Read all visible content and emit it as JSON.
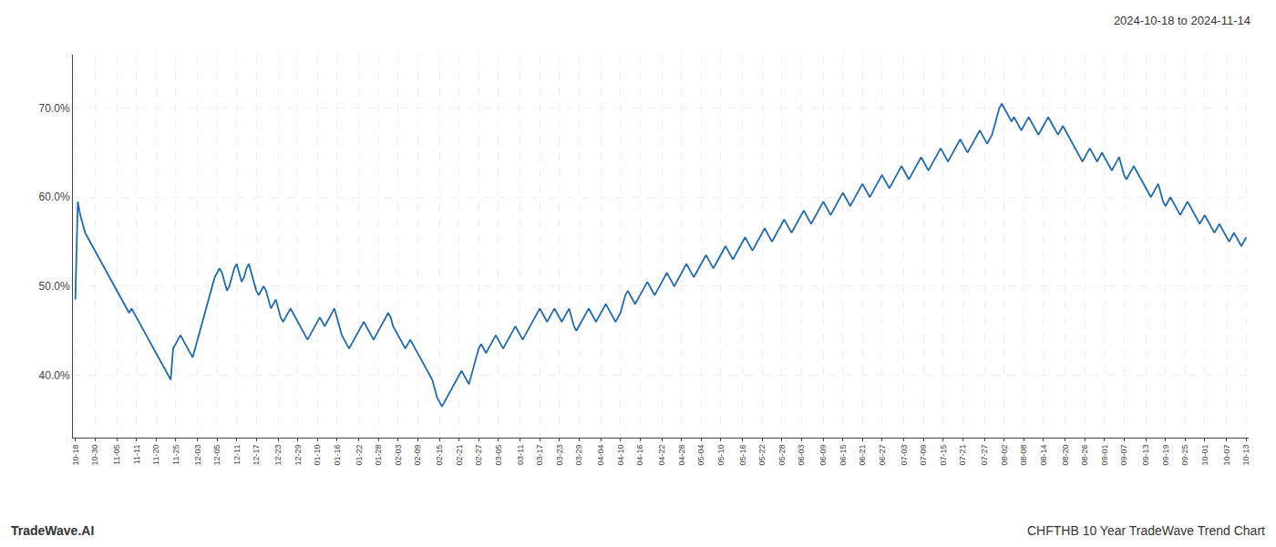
{
  "chart_data": {
    "type": "line",
    "title": "2024-10-18 to 2024-11-14",
    "annotations": [
      "TradeWave.AI",
      "CHFTHB 10 Year TradeWave Trend Chart"
    ],
    "color": "#1f6ab0",
    "grid": true,
    "ylim": [
      33,
      76
    ],
    "yticks": [
      {
        "value": 40.0,
        "label": "40.0%"
      },
      {
        "value": 50.0,
        "label": "50.0%"
      },
      {
        "value": 60.0,
        "label": "60.0%"
      },
      {
        "value": 70.0,
        "label": "70.0%"
      }
    ],
    "categories": [
      "10-18",
      null,
      null,
      null,
      null,
      null,
      null,
      null,
      "10-30",
      null,
      null,
      null,
      null,
      null,
      null,
      null,
      null,
      "11-05",
      null,
      null,
      null,
      null,
      null,
      null,
      null,
      "11-11",
      null,
      null,
      null,
      null,
      null,
      null,
      null,
      "11-20",
      null,
      null,
      null,
      null,
      null,
      null,
      null,
      "11-25",
      null,
      null,
      null,
      null,
      null,
      null,
      null,
      null,
      "12-03",
      null,
      null,
      null,
      null,
      null,
      null,
      null,
      "12-05",
      null,
      null,
      null,
      null,
      null,
      null,
      null,
      "12-11",
      null,
      null,
      null,
      null,
      null,
      null,
      null,
      "12-17",
      null,
      null,
      null,
      null,
      null,
      null,
      null,
      null,
      "12-23",
      null,
      null,
      null,
      null,
      null,
      null,
      null,
      "12-29",
      null,
      null,
      null,
      null,
      null,
      null,
      null,
      "01-10",
      null,
      null,
      null,
      null,
      null,
      null,
      null,
      "01-16",
      null,
      null,
      null,
      null,
      null,
      null,
      null,
      null,
      "01-22",
      null,
      null,
      null,
      null,
      null,
      null,
      null,
      "01-28",
      null,
      null,
      null,
      null,
      null,
      null,
      null,
      "02-03",
      null,
      null,
      null,
      null,
      null,
      null,
      null,
      "02-09",
      null,
      null,
      null,
      null,
      null,
      null,
      null,
      null,
      "02-15",
      null,
      null,
      null,
      null,
      null,
      null,
      null,
      "02-21",
      null,
      null,
      null,
      null,
      null,
      null,
      null,
      "02-27",
      null,
      null,
      null,
      null,
      null,
      null,
      null,
      "03-05",
      null,
      null,
      null,
      null,
      null,
      null,
      null,
      null,
      "03-11",
      null,
      null,
      null,
      null,
      null,
      null,
      null,
      "03-17",
      null,
      null,
      null,
      null,
      null,
      null,
      null,
      "03-23",
      null,
      null,
      null,
      null,
      null,
      null,
      null,
      "03-29",
      null,
      null,
      null,
      null,
      null,
      null,
      null,
      null,
      "04-04",
      null,
      null,
      null,
      null,
      null,
      null,
      null,
      "04-10",
      null,
      null,
      null,
      null,
      null,
      null,
      null,
      "04-16",
      null,
      null,
      null,
      null,
      null,
      null,
      null,
      null,
      "04-22",
      null,
      null,
      null,
      null,
      null,
      null,
      null,
      "04-28",
      null,
      null,
      null,
      null,
      null,
      null,
      null,
      "05-04",
      null,
      null,
      null,
      null,
      null,
      null,
      null,
      "05-10",
      null,
      null,
      null,
      null,
      null,
      null,
      null,
      null,
      "05-16",
      null,
      null,
      null,
      null,
      null,
      null,
      null,
      "05-22",
      null,
      null,
      null,
      null,
      null,
      null,
      null,
      "05-28",
      null,
      null,
      null,
      null,
      null,
      null,
      null,
      "06-03",
      null,
      null,
      null,
      null,
      null,
      null,
      null,
      null,
      "06-09",
      null,
      null,
      null,
      null,
      null,
      null,
      null,
      "06-15",
      null,
      null,
      null,
      null,
      null,
      null,
      null,
      "06-21",
      null,
      null,
      null,
      null,
      null,
      null,
      null,
      "06-27",
      null,
      null,
      null,
      null,
      null,
      null,
      null,
      null,
      "07-03",
      null,
      null,
      null,
      null,
      null,
      null,
      null,
      "07-09",
      null,
      null,
      null,
      null,
      null,
      null,
      null,
      "07-15",
      null,
      null,
      null,
      null,
      null,
      null,
      null,
      "07-21",
      null,
      null,
      null,
      null,
      null,
      null,
      null,
      null,
      "07-27",
      null,
      null,
      null,
      null,
      null,
      null,
      null,
      "08-02",
      null,
      null,
      null,
      null,
      null,
      null,
      null,
      "08-08",
      null,
      null,
      null,
      null,
      null,
      null,
      null,
      "08-14",
      null,
      null,
      null,
      null,
      null,
      null,
      null,
      null,
      "08-20",
      null,
      null,
      null,
      null,
      null,
      null,
      null,
      "08-26",
      null,
      null,
      null,
      null,
      null,
      null,
      null,
      "09-01",
      null,
      null,
      null,
      null,
      null,
      null,
      null,
      "09-07",
      null,
      null,
      null,
      null,
      null,
      null,
      null,
      null,
      "09-13",
      null,
      null,
      null,
      null,
      null,
      null,
      null,
      "09-19",
      null,
      null,
      null,
      null,
      null,
      null,
      null,
      "09-25",
      null,
      null,
      null,
      null,
      null,
      null,
      null,
      "10-01",
      null,
      null,
      null,
      null,
      null,
      null,
      null,
      null,
      "10-07",
      null,
      null,
      null,
      null,
      null,
      null,
      null,
      "10-13"
    ],
    "values": [
      48.5,
      59.5,
      58.0,
      57.0,
      56.0,
      55.5,
      55.0,
      54.5,
      54.0,
      53.5,
      53.0,
      52.5,
      52.0,
      51.5,
      51.0,
      50.5,
      50.0,
      49.5,
      49.0,
      48.5,
      48.0,
      47.5,
      47.0,
      47.5,
      47.0,
      46.5,
      46.0,
      45.5,
      45.0,
      44.5,
      44.0,
      43.5,
      43.0,
      42.5,
      42.0,
      41.5,
      41.0,
      40.5,
      40.0,
      39.5,
      43.0,
      43.5,
      44.0,
      44.5,
      44.0,
      43.5,
      43.0,
      42.5,
      42.0,
      43.0,
      44.0,
      45.0,
      46.0,
      47.0,
      48.0,
      49.0,
      50.0,
      51.0,
      51.5,
      52.0,
      51.5,
      50.5,
      49.5,
      50.0,
      51.0,
      52.0,
      52.5,
      51.5,
      50.5,
      51.0,
      52.0,
      52.5,
      51.5,
      50.5,
      49.5,
      49.0,
      49.5,
      50.0,
      49.5,
      48.5,
      47.5,
      48.0,
      48.5,
      47.5,
      46.5,
      46.0,
      46.5,
      47.0,
      47.5,
      47.0,
      46.5,
      46.0,
      45.5,
      45.0,
      44.5,
      44.0,
      44.5,
      45.0,
      45.5,
      46.0,
      46.5,
      46.0,
      45.5,
      46.0,
      46.5,
      47.0,
      47.5,
      46.5,
      45.5,
      44.5,
      44.0,
      43.5,
      43.0,
      43.5,
      44.0,
      44.5,
      45.0,
      45.5,
      46.0,
      45.5,
      45.0,
      44.5,
      44.0,
      44.5,
      45.0,
      45.5,
      46.0,
      46.5,
      47.0,
      46.5,
      45.5,
      45.0,
      44.5,
      44.0,
      43.5,
      43.0,
      43.5,
      44.0,
      43.5,
      43.0,
      42.5,
      42.0,
      41.5,
      41.0,
      40.5,
      40.0,
      39.5,
      38.5,
      37.5,
      37.0,
      36.5,
      37.0,
      37.5,
      38.0,
      38.5,
      39.0,
      39.5,
      40.0,
      40.5,
      40.0,
      39.5,
      39.0,
      40.0,
      41.0,
      42.0,
      43.0,
      43.5,
      43.0,
      42.5,
      43.0,
      43.5,
      44.0,
      44.5,
      44.0,
      43.5,
      43.0,
      43.5,
      44.0,
      44.5,
      45.0,
      45.5,
      45.0,
      44.5,
      44.0,
      44.5,
      45.0,
      45.5,
      46.0,
      46.5,
      47.0,
      47.5,
      47.0,
      46.5,
      46.0,
      46.5,
      47.0,
      47.5,
      47.0,
      46.5,
      46.0,
      46.5,
      47.0,
      47.5,
      46.5,
      45.5,
      45.0,
      45.5,
      46.0,
      46.5,
      47.0,
      47.5,
      47.0,
      46.5,
      46.0,
      46.5,
      47.0,
      47.5,
      48.0,
      47.5,
      47.0,
      46.5,
      46.0,
      46.5,
      47.0,
      48.0,
      49.0,
      49.5,
      49.0,
      48.5,
      48.0,
      48.5,
      49.0,
      49.5,
      50.0,
      50.5,
      50.0,
      49.5,
      49.0,
      49.5,
      50.0,
      50.5,
      51.0,
      51.5,
      51.0,
      50.5,
      50.0,
      50.5,
      51.0,
      51.5,
      52.0,
      52.5,
      52.0,
      51.5,
      51.0,
      51.5,
      52.0,
      52.5,
      53.0,
      53.5,
      53.0,
      52.5,
      52.0,
      52.5,
      53.0,
      53.5,
      54.0,
      54.5,
      54.0,
      53.5,
      53.0,
      53.5,
      54.0,
      54.5,
      55.0,
      55.5,
      55.0,
      54.5,
      54.0,
      54.5,
      55.0,
      55.5,
      56.0,
      56.5,
      56.0,
      55.5,
      55.0,
      55.5,
      56.0,
      56.5,
      57.0,
      57.5,
      57.0,
      56.5,
      56.0,
      56.5,
      57.0,
      57.5,
      58.0,
      58.5,
      58.0,
      57.5,
      57.0,
      57.5,
      58.0,
      58.5,
      59.0,
      59.5,
      59.0,
      58.5,
      58.0,
      58.5,
      59.0,
      59.5,
      60.0,
      60.5,
      60.0,
      59.5,
      59.0,
      59.5,
      60.0,
      60.5,
      61.0,
      61.5,
      61.0,
      60.5,
      60.0,
      60.5,
      61.0,
      61.5,
      62.0,
      62.5,
      62.0,
      61.5,
      61.0,
      61.5,
      62.0,
      62.5,
      63.0,
      63.5,
      63.0,
      62.5,
      62.0,
      62.5,
      63.0,
      63.5,
      64.0,
      64.5,
      64.0,
      63.5,
      63.0,
      63.5,
      64.0,
      64.5,
      65.0,
      65.5,
      65.0,
      64.5,
      64.0,
      64.5,
      65.0,
      65.5,
      66.0,
      66.5,
      66.0,
      65.5,
      65.0,
      65.5,
      66.0,
      66.5,
      67.0,
      67.5,
      67.0,
      66.5,
      66.0,
      66.5,
      67.0,
      68.0,
      69.0,
      70.0,
      70.5,
      70.0,
      69.5,
      69.0,
      68.5,
      69.0,
      68.5,
      68.0,
      67.5,
      68.0,
      68.5,
      69.0,
      68.5,
      68.0,
      67.5,
      67.0,
      67.5,
      68.0,
      68.5,
      69.0,
      68.5,
      68.0,
      67.5,
      67.0,
      67.5,
      68.0,
      67.5,
      67.0,
      66.5,
      66.0,
      65.5,
      65.0,
      64.5,
      64.0,
      64.5,
      65.0,
      65.5,
      65.0,
      64.5,
      64.0,
      64.5,
      65.0,
      64.5,
      64.0,
      63.5,
      63.0,
      63.5,
      64.0,
      64.5,
      63.5,
      62.5,
      62.0,
      62.5,
      63.0,
      63.5,
      63.0,
      62.5,
      62.0,
      61.5,
      61.0,
      60.5,
      60.0,
      60.5,
      61.0,
      61.5,
      60.5,
      59.5,
      59.0,
      59.5,
      60.0,
      59.5,
      59.0,
      58.5,
      58.0,
      58.5,
      59.0,
      59.5,
      59.0,
      58.5,
      58.0,
      57.5,
      57.0,
      57.5,
      58.0,
      57.5,
      57.0,
      56.5,
      56.0,
      56.5,
      57.0,
      56.5,
      56.0,
      55.5,
      55.0,
      55.5,
      56.0,
      55.5,
      55.0,
      54.5,
      55.0,
      55.5
    ]
  }
}
